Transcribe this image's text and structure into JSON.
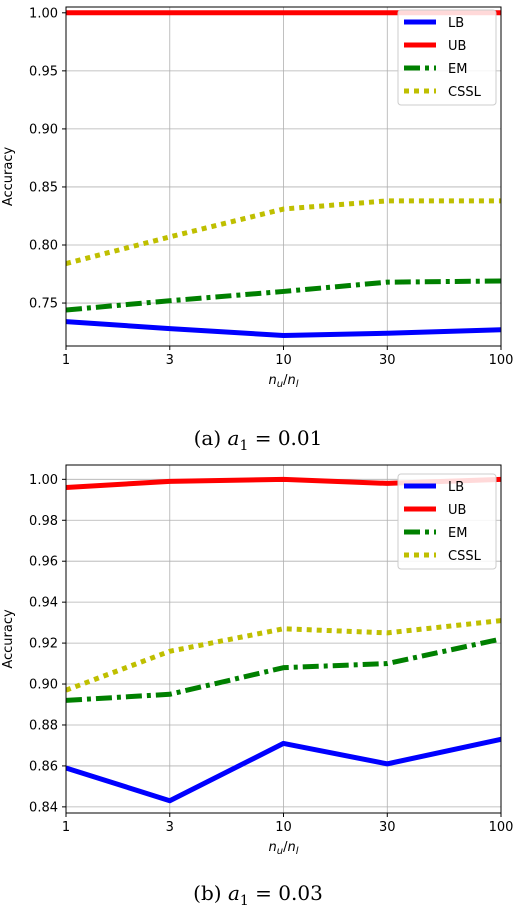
{
  "chart_data": [
    {
      "type": "line",
      "caption_prefix": "(a)",
      "caption_formula": "a",
      "caption_sub": "1",
      "caption_value": " = 0.01",
      "xlabel": "n",
      "xlabel_sub1": "u",
      "xlabel_sub2": "l",
      "ylabel": "Accuracy",
      "x": [
        1,
        3,
        10,
        30,
        100
      ],
      "x_tick_labels": [
        "1",
        "3",
        "10",
        "30",
        "100"
      ],
      "xscale": "log",
      "ylim": [
        0.713,
        1.005
      ],
      "yticks": [
        0.75,
        0.8,
        0.85,
        0.9,
        0.95,
        1.0
      ],
      "ytick_labels": [
        "0.75",
        "0.80",
        "0.85",
        "0.90",
        "0.95",
        "1.00"
      ],
      "grid": true,
      "legend_position": "top-right",
      "series": [
        {
          "name": "LB",
          "color": "#0000ff",
          "style": "solid",
          "values": [
            0.734,
            0.728,
            0.722,
            0.724,
            0.727
          ]
        },
        {
          "name": "UB",
          "color": "#ff0000",
          "style": "solid",
          "values": [
            1.0,
            1.0,
            1.0,
            1.0,
            1.0
          ]
        },
        {
          "name": "EM",
          "color": "#008000",
          "style": "dashdot",
          "values": [
            0.744,
            0.752,
            0.76,
            0.768,
            0.769
          ]
        },
        {
          "name": "CSSL",
          "color": "#bfbf00",
          "style": "dotted",
          "values": [
            0.784,
            0.807,
            0.831,
            0.838,
            0.838
          ]
        }
      ]
    },
    {
      "type": "line",
      "caption_prefix": "(b)",
      "caption_formula": "a",
      "caption_sub": "1",
      "caption_value": " = 0.03",
      "xlabel": "n",
      "xlabel_sub1": "u",
      "xlabel_sub2": "l",
      "ylabel": "Accuracy",
      "x": [
        1,
        3,
        10,
        30,
        100
      ],
      "x_tick_labels": [
        "1",
        "3",
        "10",
        "30",
        "100"
      ],
      "xscale": "log",
      "ylim": [
        0.837,
        1.007
      ],
      "yticks": [
        0.84,
        0.86,
        0.88,
        0.9,
        0.92,
        0.94,
        0.96,
        0.98,
        1.0
      ],
      "ytick_labels": [
        "0.84",
        "0.86",
        "0.88",
        "0.90",
        "0.92",
        "0.94",
        "0.96",
        "0.98",
        "1.00"
      ],
      "grid": true,
      "legend_position": "top-right",
      "series": [
        {
          "name": "LB",
          "color": "#0000ff",
          "style": "solid",
          "values": [
            0.859,
            0.843,
            0.871,
            0.861,
            0.873
          ]
        },
        {
          "name": "UB",
          "color": "#ff0000",
          "style": "solid",
          "values": [
            0.996,
            0.999,
            1.0,
            0.998,
            1.0
          ]
        },
        {
          "name": "EM",
          "color": "#008000",
          "style": "dashdot",
          "values": [
            0.892,
            0.895,
            0.908,
            0.91,
            0.922
          ]
        },
        {
          "name": "CSSL",
          "color": "#bfbf00",
          "style": "dotted",
          "values": [
            0.897,
            0.916,
            0.927,
            0.925,
            0.931
          ]
        }
      ]
    }
  ]
}
